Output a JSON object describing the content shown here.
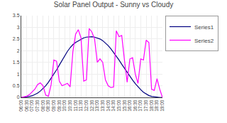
{
  "chart_data": {
    "type": "line",
    "title": "Solar Panel Output - Sunny vs Cloudy",
    "x": [
      6,
      6.25,
      6.5,
      6.75,
      7,
      7.25,
      7.5,
      7.75,
      8,
      8.25,
      8.5,
      8.75,
      9,
      9.25,
      9.5,
      9.75,
      10,
      10.25,
      10.5,
      10.75,
      11,
      11.25,
      11.5,
      11.75,
      12,
      12.25,
      12.5,
      12.75,
      13,
      13.25,
      13.5,
      13.75,
      14,
      14.25,
      14.5,
      14.75,
      15,
      15.25,
      15.5,
      15.75,
      16,
      16.25,
      16.5,
      16.75,
      17,
      17.25,
      17.5,
      17.75,
      18,
      18.25,
      18.5,
      18.75,
      19
    ],
    "series": [
      {
        "name": "Series1",
        "color": "#000080",
        "values": [
          0.0,
          0.01,
          0.02,
          0.04,
          0.07,
          0.12,
          0.18,
          0.27,
          0.38,
          0.5,
          0.65,
          0.82,
          1.0,
          1.18,
          1.38,
          1.58,
          1.78,
          1.97,
          2.13,
          2.26,
          2.35,
          2.42,
          2.5,
          2.55,
          2.58,
          2.6,
          2.6,
          2.58,
          2.55,
          2.5,
          2.43,
          2.33,
          2.22,
          2.08,
          1.93,
          1.77,
          1.6,
          1.42,
          1.24,
          1.07,
          0.9,
          0.74,
          0.59,
          0.45,
          0.33,
          0.22,
          0.14,
          0.08,
          0.04,
          0.02,
          0.01,
          0.0,
          0.0
        ]
      },
      {
        "name": "Series2",
        "color": "#FF00FF",
        "values": [
          0.0,
          0.02,
          0.05,
          0.12,
          0.25,
          0.35,
          0.55,
          0.62,
          0.5,
          0.1,
          0.05,
          0.55,
          1.6,
          1.55,
          0.7,
          0.5,
          0.55,
          0.6,
          0.45,
          1.95,
          2.7,
          2.9,
          2.55,
          0.7,
          0.75,
          2.95,
          2.8,
          2.5,
          1.5,
          1.65,
          1.5,
          0.75,
          0.5,
          0.42,
          0.45,
          2.85,
          2.6,
          2.65,
          1.6,
          0.65,
          1.65,
          1.7,
          1.0,
          0.6,
          1.65,
          1.6,
          2.45,
          2.35,
          0.35,
          0.3,
          0.8,
          0.35,
          0.0
        ]
      }
    ],
    "xlim": [
      6,
      19
    ],
    "xticks": [
      {
        "value": 6,
        "label": "06:00"
      },
      {
        "value": 6.5,
        "label": "06:30"
      },
      {
        "value": 7,
        "label": "07:00"
      },
      {
        "value": 7.5,
        "label": "07:30"
      },
      {
        "value": 8,
        "label": "08:00"
      },
      {
        "value": 8.5,
        "label": "08:30"
      },
      {
        "value": 9,
        "label": "09:00"
      },
      {
        "value": 9.5,
        "label": "09:30"
      },
      {
        "value": 10,
        "label": "10:00"
      },
      {
        "value": 10.5,
        "label": "10:30"
      },
      {
        "value": 11,
        "label": "11:00"
      },
      {
        "value": 11.5,
        "label": "11:30"
      },
      {
        "value": 12,
        "label": "12:00"
      },
      {
        "value": 12.5,
        "label": "12:30"
      },
      {
        "value": 13,
        "label": "13:00"
      },
      {
        "value": 13.5,
        "label": "13:30"
      },
      {
        "value": 14,
        "label": "14:00"
      },
      {
        "value": 14.5,
        "label": "14:30"
      },
      {
        "value": 15,
        "label": "15:00"
      },
      {
        "value": 15.5,
        "label": "15:30"
      },
      {
        "value": 16,
        "label": "16:00"
      },
      {
        "value": 16.5,
        "label": "16:30"
      },
      {
        "value": 17,
        "label": "17:00"
      },
      {
        "value": 17.5,
        "label": "17:30"
      },
      {
        "value": 18,
        "label": "18:00"
      },
      {
        "value": 18.5,
        "label": "18:30"
      },
      {
        "value": 19,
        "label": "19:00"
      }
    ],
    "ylim": [
      0,
      3.5
    ],
    "yticks": [
      0,
      0.5,
      1,
      1.5,
      2,
      2.5,
      3,
      3.5
    ],
    "grid": true,
    "legend": "right"
  }
}
